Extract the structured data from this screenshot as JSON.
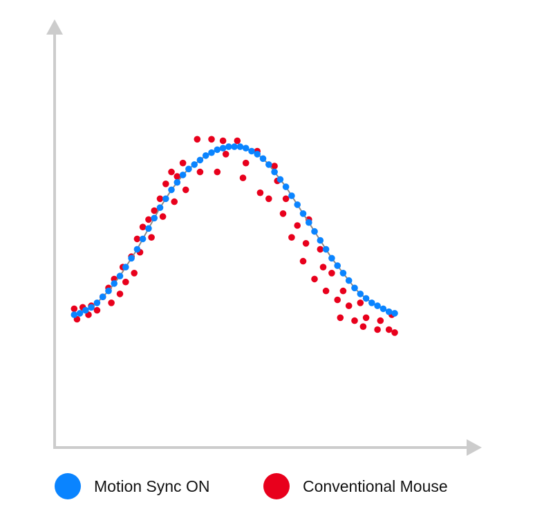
{
  "chart_data": {
    "type": "scatter",
    "title": "",
    "xlabel": "",
    "ylabel": "",
    "grid": false,
    "legend_placement": "bottom",
    "xlim": [
      0,
      72
    ],
    "ylim": [
      0,
      100
    ],
    "series": [
      {
        "name": "Motion Sync ON",
        "color": "#0a84ff",
        "line_color": "#8a8a8a",
        "points": [
          [
            1,
            40
          ],
          [
            2,
            40.5
          ],
          [
            3,
            41.5
          ],
          [
            4,
            42.5
          ],
          [
            5,
            44
          ],
          [
            6,
            46
          ],
          [
            7,
            48
          ],
          [
            8,
            50.5
          ],
          [
            9,
            53
          ],
          [
            10,
            56
          ],
          [
            11,
            59
          ],
          [
            12,
            62
          ],
          [
            13,
            65.5
          ],
          [
            14,
            69
          ],
          [
            15,
            72.5
          ],
          [
            16,
            76
          ],
          [
            17,
            79
          ],
          [
            18,
            82
          ],
          [
            19,
            84.5
          ],
          [
            20,
            87
          ],
          [
            21,
            89
          ],
          [
            22,
            90.5
          ],
          [
            23,
            92
          ],
          [
            24,
            93.5
          ],
          [
            25,
            94.5
          ],
          [
            26,
            95.5
          ],
          [
            27,
            96
          ],
          [
            28,
            96.5
          ],
          [
            29,
            96.5
          ],
          [
            30,
            96.5
          ],
          [
            31,
            96
          ],
          [
            32,
            95
          ],
          [
            33,
            94
          ],
          [
            34,
            92.5
          ],
          [
            35,
            90.5
          ],
          [
            36,
            88
          ],
          [
            37,
            85.5
          ],
          [
            38,
            83
          ],
          [
            39,
            80
          ],
          [
            40,
            77
          ],
          [
            41,
            74
          ],
          [
            42,
            71
          ],
          [
            43,
            68
          ],
          [
            44,
            65
          ],
          [
            45,
            62
          ],
          [
            46,
            59
          ],
          [
            47,
            56.5
          ],
          [
            48,
            54
          ],
          [
            49,
            51.5
          ],
          [
            50,
            49
          ],
          [
            51,
            47
          ],
          [
            52,
            45.5
          ],
          [
            53,
            44
          ],
          [
            54,
            43
          ],
          [
            55,
            42
          ],
          [
            56,
            41
          ],
          [
            57,
            40.5
          ]
        ]
      },
      {
        "name": "Conventional Mouse",
        "color": "#e8001c",
        "points": [
          [
            1,
            42
          ],
          [
            1.5,
            38.5
          ],
          [
            2.5,
            42.5
          ],
          [
            3.5,
            40
          ],
          [
            4,
            43
          ],
          [
            5,
            41.5
          ],
          [
            6,
            46
          ],
          [
            7,
            49
          ],
          [
            7.5,
            44
          ],
          [
            8,
            52
          ],
          [
            9,
            47
          ],
          [
            9.5,
            56
          ],
          [
            10,
            51
          ],
          [
            11,
            59.5
          ],
          [
            11.5,
            54
          ],
          [
            12,
            65.5
          ],
          [
            12.5,
            61
          ],
          [
            13,
            69.5
          ],
          [
            14,
            72
          ],
          [
            14.5,
            66
          ],
          [
            15,
            75
          ],
          [
            16,
            79
          ],
          [
            16.5,
            73
          ],
          [
            17,
            84
          ],
          [
            18,
            88
          ],
          [
            18.5,
            78
          ],
          [
            19,
            86.5
          ],
          [
            20,
            91
          ],
          [
            20.5,
            82
          ],
          [
            22.5,
            99
          ],
          [
            23,
            88
          ],
          [
            25,
            99
          ],
          [
            26,
            88
          ],
          [
            27,
            98.5
          ],
          [
            27.5,
            94
          ],
          [
            29.5,
            98.5
          ],
          [
            30.5,
            86
          ],
          [
            31,
            91
          ],
          [
            33,
            95
          ],
          [
            33.5,
            81
          ],
          [
            35,
            79
          ],
          [
            36,
            90
          ],
          [
            36.5,
            85
          ],
          [
            37.5,
            74
          ],
          [
            38,
            79
          ],
          [
            39,
            66
          ],
          [
            40,
            70
          ],
          [
            41,
            58
          ],
          [
            41.5,
            64
          ],
          [
            42,
            72
          ],
          [
            43,
            52
          ],
          [
            44,
            62
          ],
          [
            44.5,
            56
          ],
          [
            45,
            48
          ],
          [
            46,
            54
          ],
          [
            47,
            45
          ],
          [
            47.5,
            39
          ],
          [
            48,
            48
          ],
          [
            49,
            43
          ],
          [
            50,
            38
          ],
          [
            51,
            44
          ],
          [
            51.5,
            36
          ],
          [
            52,
            39
          ],
          [
            54,
            35
          ],
          [
            54.5,
            38
          ],
          [
            56,
            35
          ],
          [
            56.5,
            40
          ],
          [
            57,
            34
          ]
        ]
      }
    ]
  },
  "legend": {
    "items": [
      {
        "label": "Motion Sync ON",
        "color": "#0a84ff"
      },
      {
        "label": "Conventional Mouse",
        "color": "#e8001c"
      }
    ]
  },
  "axes_color": "#cccccc"
}
